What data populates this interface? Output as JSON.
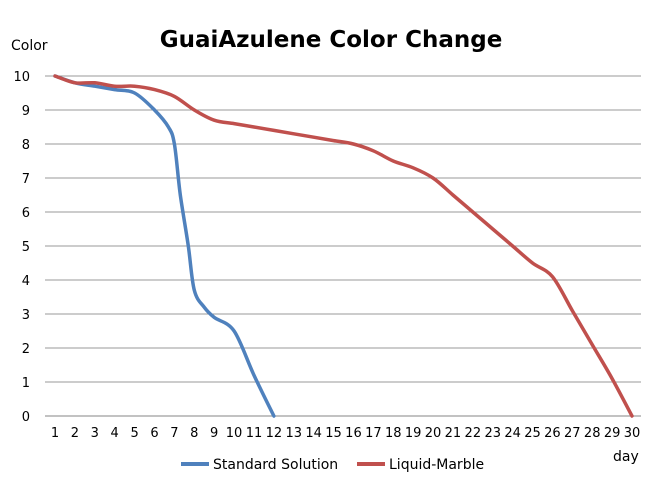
{
  "chart_data": {
    "type": "line",
    "title": "GuaiAzulene Color Change",
    "xlabel": "day",
    "ylabel": "Color",
    "x": [
      1,
      2,
      3,
      4,
      5,
      6,
      7,
      8,
      9,
      10,
      11,
      12,
      13,
      14,
      15,
      16,
      17,
      18,
      19,
      20,
      21,
      22,
      23,
      24,
      25,
      26,
      27,
      28,
      29,
      30
    ],
    "xlim": [
      1,
      30
    ],
    "ylim": [
      0,
      10
    ],
    "yticks": [
      0,
      1,
      2,
      3,
      4,
      5,
      6,
      7,
      8,
      9,
      10
    ],
    "grid": true,
    "legend_position": "bottom",
    "series": [
      {
        "name": "Standard Solution",
        "color": "#4f81bd",
        "x": [
          1,
          2,
          3,
          4,
          5,
          6,
          6.7,
          7,
          7.3,
          7.7,
          8,
          8.5,
          9,
          10,
          11,
          12
        ],
        "values": [
          10,
          9.8,
          9.7,
          9.6,
          9.5,
          9.0,
          8.5,
          8.0,
          6.5,
          5.0,
          3.7,
          3.2,
          2.9,
          2.5,
          1.2,
          0
        ]
      },
      {
        "name": "Liquid-Marble",
        "color": "#c0504d",
        "x": [
          1,
          2,
          3,
          4,
          5,
          6,
          7,
          8,
          9,
          10,
          11,
          12,
          13,
          14,
          15,
          16,
          17,
          18,
          19,
          20,
          21,
          22,
          23,
          24,
          25,
          26,
          27,
          28,
          29,
          30
        ],
        "values": [
          10,
          9.8,
          9.8,
          9.7,
          9.7,
          9.6,
          9.4,
          9.0,
          8.7,
          8.6,
          8.5,
          8.4,
          8.3,
          8.2,
          8.1,
          8.0,
          7.8,
          7.5,
          7.3,
          7.0,
          6.5,
          6.0,
          5.5,
          5.0,
          4.5,
          4.1,
          3.1,
          2.1,
          1.1,
          0
        ]
      }
    ]
  }
}
